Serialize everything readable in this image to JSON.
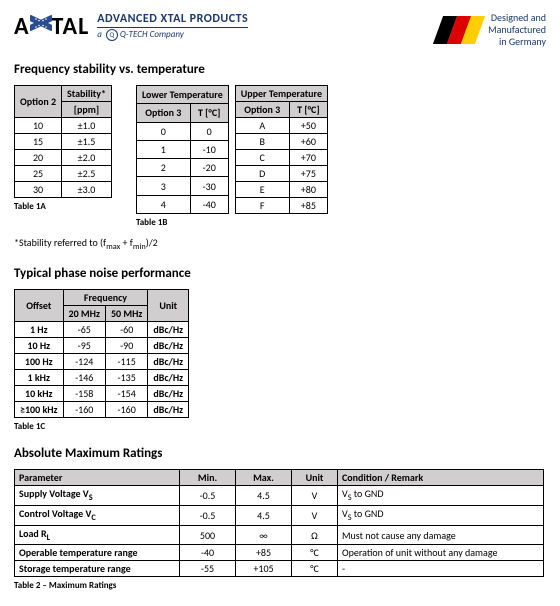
{
  "header": {
    "brand_a": "A",
    "brand_x": "X",
    "brand_tal": "TAL",
    "tagline": "ADVANCED XTAL PRODUCTS",
    "subline_prefix": "a ",
    "subline_q": "Q",
    "subline_suffix": "Q-TECH Company",
    "made_in_l1": "Designed and",
    "made_in_l2": "Manufactured",
    "made_in_l3": "in Germany",
    "flag_colors": [
      "#000000",
      "#dd0000",
      "#ffce00"
    ]
  },
  "colors": {
    "accent": "#1a3a6e",
    "th_bg": "#d0cece"
  },
  "section1": {
    "title": "Frequency stability vs. temperature",
    "t1a": {
      "h_opt": "Option 2",
      "h_stab": "Stability*",
      "h_ppm": "[ppm]",
      "rows": [
        [
          "10",
          "±1.0"
        ],
        [
          "15",
          "±1.5"
        ],
        [
          "20",
          "±2.0"
        ],
        [
          "25",
          "±2.5"
        ],
        [
          "30",
          "±3.0"
        ]
      ],
      "caption": "Table 1A"
    },
    "t1b": {
      "h_low": "Lower Temperature",
      "h_up": "Upper Temperature",
      "h_opt3": "Option 3",
      "h_tc": "T [°C]",
      "low_rows": [
        [
          "0",
          "0"
        ],
        [
          "1",
          "-10"
        ],
        [
          "2",
          "-20"
        ],
        [
          "3",
          "-30"
        ],
        [
          "4",
          "-40"
        ]
      ],
      "up_rows": [
        [
          "A",
          "+50"
        ],
        [
          "B",
          "+60"
        ],
        [
          "C",
          "+70"
        ],
        [
          "D",
          "+75"
        ],
        [
          "E",
          "+80"
        ],
        [
          "F",
          "+85"
        ]
      ],
      "caption": "Table 1B"
    },
    "footnote_pre": "*Stability referred to (f",
    "footnote_sub1": "max",
    "footnote_mid": " + f",
    "footnote_sub2": "min",
    "footnote_post": ")/2"
  },
  "section2": {
    "title": "Typical phase noise performance",
    "h_off": "Offset",
    "h_freq": "Frequency",
    "h_20": "20 MHz",
    "h_50": "50 MHz",
    "h_unit": "Unit",
    "rows": [
      [
        "1 Hz",
        "-65",
        "-60",
        "dBc/Hz"
      ],
      [
        "10 Hz",
        "-95",
        "-90",
        "dBc/Hz"
      ],
      [
        "100 Hz",
        "-124",
        "-115",
        "dBc/Hz"
      ],
      [
        "1 kHz",
        "-146",
        "-135",
        "dBc/Hz"
      ],
      [
        "10 kHz",
        "-158",
        "-154",
        "dBc/Hz"
      ],
      [
        "≥100 kHz",
        "-160",
        "-160",
        "dBc/Hz"
      ]
    ],
    "caption": "Table 1C"
  },
  "section3": {
    "title": "Absolute Maximum Ratings",
    "h_param": "Parameter",
    "h_min": "Min.",
    "h_max": "Max.",
    "h_unit": "Unit",
    "h_cond": "Condition / Remark",
    "rows": [
      {
        "p_pre": "Supply Voltage V",
        "p_sub": "S",
        "min": "-0.5",
        "max": "4.5",
        "unit": "V",
        "c_pre": "V",
        "c_sub": "S",
        "c_post": " to GND"
      },
      {
        "p_pre": "Control Voltage V",
        "p_sub": "C",
        "min": "-0.5",
        "max": "4.5",
        "unit": "V",
        "c_pre": "V",
        "c_sub": "S",
        "c_post": " to GND"
      },
      {
        "p_pre": "Load R",
        "p_sub": "L",
        "min": "500",
        "max": "∞",
        "unit": "Ω",
        "c_pre": "Must not cause any damage",
        "c_sub": "",
        "c_post": ""
      },
      {
        "p_pre": "Operable temperature range",
        "p_sub": "",
        "min": "-40",
        "max": "+85",
        "unit": "°C",
        "c_pre": "Operation of unit without any damage",
        "c_sub": "",
        "c_post": ""
      },
      {
        "p_pre": "Storage temperature range",
        "p_sub": "",
        "min": "-55",
        "max": "+105",
        "unit": "°C",
        "c_pre": "-",
        "c_sub": "",
        "c_post": ""
      }
    ],
    "caption": "Table 2 – Maximum Ratings"
  }
}
